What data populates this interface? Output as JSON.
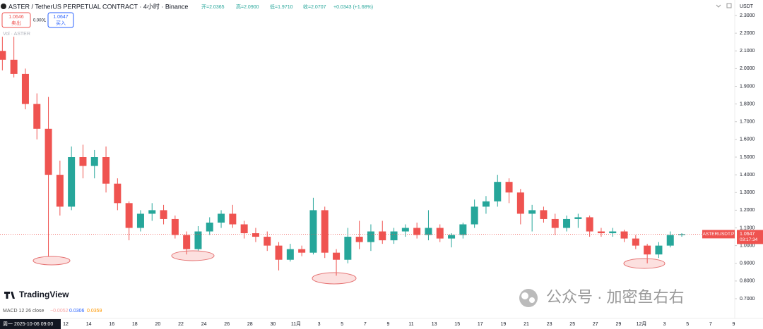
{
  "header": {
    "title": "ASTER / TetherUS PERPETUAL CONTRACT · 4小时 · Binance",
    "ohlc": [
      "开=2.0365",
      "高=2.0900",
      "低=1.9710",
      "收=2.0707"
    ],
    "change": "+0.0343 (+1.68%)",
    "currency": "USDT"
  },
  "order_panel": {
    "sell_price": "1.0646",
    "sell_label": "卖出",
    "spread": "0.0001",
    "buy_price": "1.0647",
    "buy_label": "买入"
  },
  "volume_label": "Vol · ASTER",
  "logo": "TradingView",
  "macd": {
    "label": "MACD 12 26 close",
    "histogram": "−0.0052",
    "macd": "0.0306",
    "signal": "0.0359"
  },
  "crosshair_date": "周一 2025-10-06 09:00",
  "watermark": "公众号 · 加密鱼右右",
  "chart_data": {
    "type": "candlestick",
    "categories": [
      null,
      null,
      null,
      null,
      null,
      null,
      "12",
      null,
      "14",
      null,
      "16",
      null,
      "18",
      null,
      "20",
      null,
      "22",
      null,
      "24",
      null,
      "26",
      null,
      "28",
      null,
      "30",
      null,
      "11月",
      null,
      "3",
      null,
      "5",
      null,
      "7",
      null,
      "9",
      null,
      "11",
      null,
      "13",
      null,
      "15",
      null,
      "17",
      null,
      "19",
      null,
      "21",
      null,
      "23",
      null,
      "25",
      null,
      "27",
      null,
      "29",
      null,
      "12月",
      null,
      "3",
      null,
      "5",
      null,
      "7",
      null,
      "9"
    ],
    "open": [
      2.1,
      2.05,
      1.97,
      1.8,
      1.66,
      1.4,
      1.22,
      1.5,
      1.45,
      1.5,
      1.35,
      1.24,
      1.1,
      1.18,
      1.2,
      1.15,
      1.06,
      0.98,
      1.08,
      1.13,
      1.18,
      1.12,
      1.07,
      1.05,
      1.0,
      0.92,
      0.98,
      0.96,
      1.2,
      0.96,
      0.92,
      1.05,
      1.02,
      1.08,
      1.03,
      1.08,
      1.1,
      1.06,
      1.1,
      1.04,
      1.06,
      1.12,
      1.22,
      1.25,
      1.36,
      1.3,
      1.18,
      1.2,
      1.15,
      1.1,
      1.15,
      1.16,
      1.08,
      1.07,
      1.08,
      1.04,
      1.0,
      0.95,
      1.0,
      1.06,
      null,
      null,
      null,
      null,
      null
    ],
    "high": [
      2.18,
      2.18,
      2.0,
      1.86,
      1.84,
      1.48,
      1.56,
      1.57,
      1.54,
      1.56,
      1.38,
      1.25,
      1.2,
      1.24,
      1.23,
      1.17,
      1.08,
      1.11,
      1.16,
      1.2,
      1.23,
      1.14,
      1.1,
      1.08,
      1.02,
      1.01,
      1.0,
      1.27,
      1.22,
      0.98,
      1.1,
      1.14,
      1.12,
      1.14,
      1.1,
      1.12,
      1.13,
      1.2,
      1.12,
      1.07,
      1.13,
      1.26,
      1.28,
      1.4,
      1.38,
      1.32,
      1.23,
      1.22,
      1.18,
      1.17,
      1.18,
      1.17,
      1.1,
      1.1,
      1.09,
      1.06,
      1.01,
      1.02,
      1.08,
      1.07,
      null,
      null,
      null,
      null,
      null
    ],
    "low": [
      1.99,
      1.95,
      1.77,
      1.6,
      0.94,
      1.17,
      1.2,
      1.38,
      1.38,
      1.3,
      1.2,
      1.03,
      1.08,
      1.14,
      1.12,
      1.04,
      0.95,
      0.97,
      1.06,
      1.1,
      1.1,
      1.04,
      1.02,
      0.97,
      0.86,
      0.91,
      0.94,
      0.95,
      0.93,
      0.83,
      0.9,
      0.98,
      0.97,
      1.01,
      1.01,
      1.05,
      1.04,
      1.03,
      1.02,
      0.99,
      1.04,
      1.1,
      1.18,
      1.22,
      1.24,
      1.12,
      1.08,
      1.13,
      1.06,
      1.08,
      1.1,
      1.05,
      1.05,
      1.05,
      1.02,
      0.98,
      0.9,
      0.93,
      0.99,
      1.05,
      null,
      null,
      null,
      null,
      null
    ],
    "close": [
      2.05,
      1.97,
      1.8,
      1.66,
      1.4,
      1.22,
      1.5,
      1.45,
      1.5,
      1.35,
      1.24,
      1.1,
      1.18,
      1.2,
      1.15,
      1.06,
      0.98,
      1.08,
      1.13,
      1.18,
      1.12,
      1.07,
      1.05,
      1.0,
      0.92,
      0.98,
      0.96,
      1.2,
      0.96,
      0.92,
      1.05,
      1.02,
      1.08,
      1.03,
      1.08,
      1.1,
      1.06,
      1.1,
      1.04,
      1.06,
      1.12,
      1.22,
      1.25,
      1.36,
      1.3,
      1.18,
      1.2,
      1.15,
      1.1,
      1.15,
      1.16,
      1.08,
      1.07,
      1.08,
      1.04,
      1.0,
      0.95,
      1.0,
      1.06,
      1.0647,
      null,
      null,
      null,
      null,
      null
    ],
    "up_color": "#26a69a",
    "down_color": "#ef5350",
    "ylim": [
      0.7,
      2.3
    ],
    "yticks": [
      {
        "value": 0.7,
        "label": "0.7000"
      },
      {
        "value": 0.8,
        "label": "0.8000"
      },
      {
        "value": 0.9,
        "label": "0.9000"
      },
      {
        "value": 1.0,
        "label": "1.0000"
      },
      {
        "value": 1.1,
        "label": "1.1000"
      },
      {
        "value": 1.2,
        "label": "1.2000"
      },
      {
        "value": 1.3,
        "label": "1.3000"
      },
      {
        "value": 1.4,
        "label": "1.4000"
      },
      {
        "value": 1.5,
        "label": "1.5000"
      },
      {
        "value": 1.6,
        "label": "1.6000"
      },
      {
        "value": 1.7,
        "label": "1.7000"
      },
      {
        "value": 1.8,
        "label": "1.8000"
      },
      {
        "value": 1.9,
        "label": "1.9000"
      },
      {
        "value": 2.0,
        "label": "2.0000"
      },
      {
        "value": 2.1,
        "label": "2.1000"
      },
      {
        "value": 2.2,
        "label": "2.2000"
      },
      {
        "value": 2.3,
        "label": "2.3000"
      }
    ],
    "last_price": 1.0647,
    "symbol_label": "ASTERUSDT.P",
    "countdown": "03:17:34",
    "last_price_color": "#ef5350"
  }
}
